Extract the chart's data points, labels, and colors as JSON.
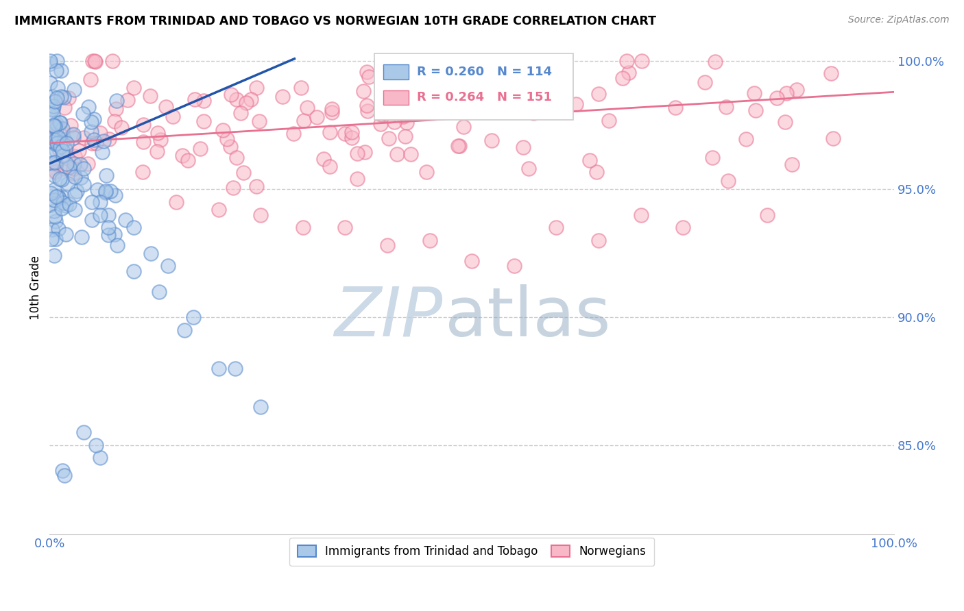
{
  "title": "IMMIGRANTS FROM TRINIDAD AND TOBAGO VS NORWEGIAN 10TH GRADE CORRELATION CHART",
  "source": "Source: ZipAtlas.com",
  "ylabel": "10th Grade",
  "xlim": [
    0.0,
    1.0
  ],
  "ylim": [
    0.815,
    1.008
  ],
  "y_tick_values": [
    0.85,
    0.9,
    0.95,
    1.0
  ],
  "y_tick_labels": [
    "85.0%",
    "90.0%",
    "95.0%",
    "100.0%"
  ],
  "x_tick_labels": [
    "0.0%",
    "100.0%"
  ],
  "legend_blue_r": "R = 0.260",
  "legend_blue_n": "N = 114",
  "legend_pink_r": "R = 0.264",
  "legend_pink_n": "N = 151",
  "label_blue": "Immigrants from Trinidad and Tobago",
  "label_pink": "Norwegians",
  "blue_fill": "#aac8e8",
  "blue_edge": "#5588cc",
  "pink_fill": "#f8b8c8",
  "pink_edge": "#e87090",
  "blue_line_color": "#2255aa",
  "pink_line_color": "#e87090",
  "watermark_zip_color": "#c0d0e0",
  "watermark_atlas_color": "#90aac0",
  "tick_color": "#4477cc",
  "grid_color": "#cccccc",
  "blue_trend_x0": 0.0,
  "blue_trend_y0": 0.96,
  "blue_trend_x1": 0.29,
  "blue_trend_y1": 1.001,
  "pink_trend_x0": 0.0,
  "pink_trend_y0": 0.968,
  "pink_trend_x1": 1.0,
  "pink_trend_y1": 0.988
}
